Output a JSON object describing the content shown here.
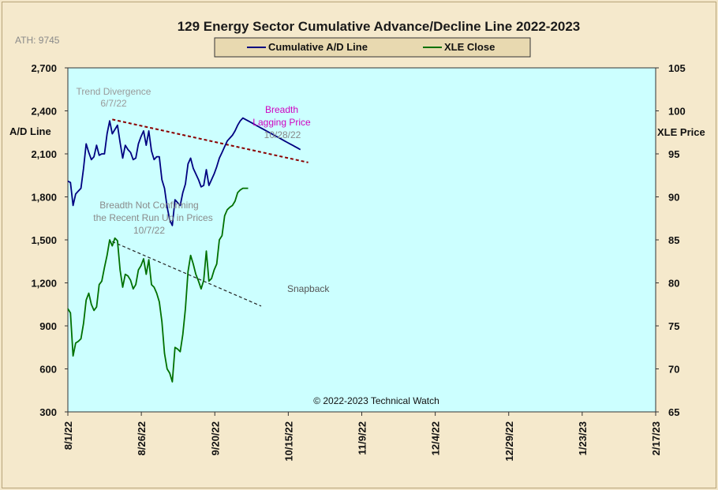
{
  "chart_data": {
    "type": "line",
    "title": "129 Energy Sector Cumulative Advance/Decline Line 2022-2023",
    "ath_label": "ATH: 9745",
    "ylabel_left": "A/D Line",
    "ylabel_right": "XLE Price",
    "copyright": "© 2022-2023  Technical Watch",
    "ylim_left": [
      300,
      2700
    ],
    "ylim_right": [
      65,
      105
    ],
    "y_ticks_left": [
      "300",
      "600",
      "900",
      "1,200",
      "1,500",
      "1,800",
      "2,100",
      "2,400",
      "2,700"
    ],
    "y_ticks_right": [
      "65",
      "70",
      "75",
      "80",
      "85",
      "90",
      "95",
      "100",
      "105"
    ],
    "x_ticks": [
      "8/1/22",
      "8/26/22",
      "9/20/22",
      "10/15/22",
      "11/9/22",
      "12/4/22",
      "12/29/22",
      "1/23/23",
      "2/17/23"
    ],
    "series": [
      {
        "name": "Cumulative A/D Line",
        "color": "#000080",
        "axis": "left",
        "x": [
          0,
          1,
          2,
          3,
          4,
          5,
          6,
          7,
          8,
          9,
          10,
          11,
          12,
          13,
          14,
          15,
          16,
          17,
          18,
          19,
          20,
          21,
          22,
          23,
          24,
          25,
          26,
          27,
          28,
          29,
          30,
          31,
          32,
          33,
          34,
          35,
          36,
          37,
          38,
          39,
          40,
          41,
          42,
          43,
          44,
          45,
          46,
          47,
          48,
          49,
          50,
          51,
          52,
          53,
          54,
          55,
          56,
          57,
          58,
          59,
          60,
          61,
          62,
          63,
          64,
          65,
          66,
          67,
          68,
          69,
          70,
          71,
          72,
          73,
          74,
          75,
          76,
          77,
          78,
          79,
          80,
          81,
          82,
          83,
          84,
          85,
          86,
          87,
          88,
          89
        ],
        "values": [
          1910,
          1900,
          1740,
          1820,
          1840,
          1860,
          2000,
          2170,
          2110,
          2060,
          2080,
          2160,
          2090,
          2100,
          2100,
          2240,
          2330,
          2240,
          2270,
          2300,
          2180,
          2070,
          2160,
          2130,
          2110,
          2060,
          2070,
          2170,
          2220,
          2260,
          2160,
          2260,
          2120,
          2060,
          2080,
          2080,
          1920,
          1860,
          1730,
          1640,
          1600,
          1780,
          1760,
          1740,
          1830,
          1890,
          2030,
          2070,
          2000,
          1960,
          1920,
          1870,
          1880,
          1990,
          1880,
          1920,
          1960,
          2010,
          2070,
          2110,
          2150,
          2190,
          2210,
          2230,
          2260,
          2300,
          2330,
          2350,
          2340,
          2330,
          2320,
          2310,
          2300,
          2290,
          2280,
          2270,
          2260,
          2250,
          2240,
          2230,
          2220,
          2210,
          2200,
          2190,
          2180,
          2170,
          2160,
          2150,
          2140,
          2130
        ]
      },
      {
        "name": "XLE Close",
        "color": "#007000",
        "axis": "right",
        "x": [
          0,
          1,
          2,
          3,
          4,
          5,
          6,
          7,
          8,
          9,
          10,
          11,
          12,
          13,
          14,
          15,
          16,
          17,
          18,
          19,
          20,
          21,
          22,
          23,
          24,
          25,
          26,
          27,
          28,
          29,
          30,
          31,
          32,
          33,
          34,
          35,
          36,
          37,
          38,
          39,
          40,
          41,
          42,
          43,
          44,
          45,
          46,
          47,
          48,
          49,
          50,
          51,
          52,
          53,
          54,
          55,
          56,
          57,
          58,
          59,
          60,
          61,
          62,
          63,
          64,
          65,
          66,
          67,
          68,
          69
        ],
        "values": [
          77.0,
          76.5,
          71.5,
          73.0,
          73.2,
          73.5,
          75.3,
          78.0,
          78.8,
          77.5,
          76.8,
          77.2,
          79.8,
          80.2,
          81.8,
          83.2,
          85.0,
          84.3,
          85.2,
          84.9,
          81.5,
          79.5,
          81.0,
          80.8,
          80.3,
          79.3,
          79.8,
          81.5,
          82.0,
          82.8,
          81.0,
          82.7,
          79.8,
          79.5,
          78.8,
          77.8,
          75.5,
          71.8,
          70.0,
          69.5,
          68.5,
          72.5,
          72.3,
          72.0,
          74.0,
          77.0,
          81.3,
          83.2,
          82.2,
          81.0,
          80.2,
          79.3,
          80.3,
          83.7,
          80.2,
          80.5,
          81.5,
          82.2,
          85.0,
          85.5,
          87.8,
          88.5,
          88.8,
          89.0,
          89.5,
          90.5,
          90.8,
          91.0,
          91.0,
          91.0
        ]
      }
    ],
    "trendlines": [
      {
        "color": "#8b0000",
        "axis": "left",
        "from": [
          17,
          2340
        ],
        "to": [
          92,
          2040
        ]
      },
      {
        "color": "#222222",
        "axis": "right",
        "from": [
          17,
          84.8
        ],
        "to": [
          74,
          77.3
        ]
      }
    ],
    "annotations": [
      {
        "lines": [
          "Trend Divergence",
          "6/7/22"
        ],
        "color": "#9a9a9a"
      },
      {
        "lines": [
          "Breadth",
          "Lagging Price"
        ],
        "extra": "10/28/22",
        "color": "#d000c0",
        "extra_color": "#888888"
      },
      {
        "lines": [
          "Breadth Not Confirming",
          "the Recent Run Up in Prices",
          "10/7/22"
        ],
        "color": "#8a8a8a"
      },
      {
        "lines": [
          "Snapback"
        ],
        "color": "#555555"
      }
    ],
    "grid": false,
    "legend_position": "top-center",
    "plot_background": "#ccffff"
  }
}
